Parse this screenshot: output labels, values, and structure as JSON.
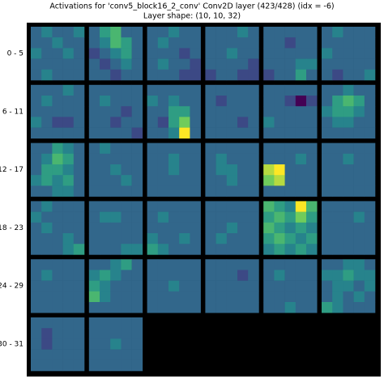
{
  "chart_data": {
    "type": "heatmap-grid",
    "title": "Activations for 'conv5_block16_2_conv' Conv2D layer (423/428) (idx = -6)",
    "subtitle": "Layer shape: (10, 10, 32)",
    "row_labels": [
      "0 - 5",
      "6 - 11",
      "12 - 17",
      "18 - 23",
      "24 - 29",
      "30 - 31"
    ],
    "tiles": [
      [
        [
          3,
          4,
          3,
          3,
          4
        ],
        [
          3,
          3,
          4,
          3,
          3
        ],
        [
          4,
          3,
          3,
          4,
          3
        ],
        [
          3,
          3,
          3,
          3,
          3
        ],
        [
          3,
          4,
          3,
          3,
          3
        ]
      ],
      [
        [
          3,
          5,
          6,
          3,
          3
        ],
        [
          3,
          4,
          6,
          5,
          3
        ],
        [
          2,
          3,
          4,
          5,
          3
        ],
        [
          3,
          2,
          3,
          4,
          3
        ],
        [
          3,
          3,
          2,
          3,
          3
        ]
      ],
      [
        [
          3,
          3,
          4,
          3,
          3
        ],
        [
          3,
          4,
          3,
          3,
          3
        ],
        [
          3,
          3,
          3,
          2,
          3
        ],
        [
          3,
          4,
          3,
          3,
          2
        ],
        [
          3,
          3,
          3,
          2,
          2
        ]
      ],
      [
        [
          3,
          3,
          3,
          4,
          3
        ],
        [
          3,
          3,
          3,
          3,
          3
        ],
        [
          3,
          3,
          4,
          3,
          3
        ],
        [
          3,
          3,
          3,
          3,
          2
        ],
        [
          2,
          3,
          3,
          2,
          2
        ]
      ],
      [
        [
          3,
          3,
          3,
          3,
          3
        ],
        [
          3,
          3,
          2,
          3,
          3
        ],
        [
          3,
          3,
          3,
          3,
          3
        ],
        [
          3,
          3,
          3,
          4,
          4
        ],
        [
          2,
          3,
          3,
          5,
          3
        ]
      ],
      [
        [
          3,
          4,
          3,
          3,
          3
        ],
        [
          3,
          3,
          3,
          3,
          3
        ],
        [
          4,
          3,
          3,
          3,
          3
        ],
        [
          3,
          3,
          3,
          3,
          3
        ],
        [
          3,
          2,
          3,
          3,
          4
        ]
      ],
      [
        [
          3,
          3,
          3,
          4,
          3
        ],
        [
          3,
          4,
          3,
          3,
          3
        ],
        [
          3,
          3,
          3,
          3,
          3
        ],
        [
          4,
          3,
          2,
          2,
          3
        ],
        [
          3,
          3,
          3,
          3,
          3
        ]
      ],
      [
        [
          3,
          3,
          3,
          3,
          3
        ],
        [
          3,
          4,
          3,
          3,
          3
        ],
        [
          3,
          3,
          3,
          2,
          3
        ],
        [
          3,
          3,
          2,
          3,
          3
        ],
        [
          3,
          3,
          3,
          3,
          2
        ]
      ],
      [
        [
          3,
          3,
          3,
          3,
          3
        ],
        [
          4,
          3,
          4,
          3,
          3
        ],
        [
          3,
          3,
          5,
          5,
          3
        ],
        [
          3,
          2,
          5,
          7,
          3
        ],
        [
          3,
          3,
          4,
          9,
          3
        ]
      ],
      [
        [
          3,
          3,
          3,
          3,
          3
        ],
        [
          3,
          2,
          3,
          3,
          3
        ],
        [
          3,
          3,
          3,
          3,
          3
        ],
        [
          3,
          3,
          3,
          2,
          3
        ],
        [
          3,
          3,
          3,
          3,
          3
        ]
      ],
      [
        [
          3,
          3,
          3,
          3,
          3
        ],
        [
          3,
          3,
          2,
          0,
          2
        ],
        [
          3,
          3,
          3,
          3,
          3
        ],
        [
          4,
          3,
          3,
          3,
          3
        ],
        [
          3,
          3,
          3,
          3,
          3
        ]
      ],
      [
        [
          3,
          3,
          4,
          3,
          3
        ],
        [
          3,
          5,
          6,
          5,
          3
        ],
        [
          4,
          5,
          5,
          4,
          3
        ],
        [
          3,
          4,
          4,
          3,
          3
        ],
        [
          3,
          3,
          3,
          3,
          3
        ]
      ],
      [
        [
          3,
          3,
          5,
          4,
          3
        ],
        [
          3,
          4,
          6,
          5,
          3
        ],
        [
          3,
          5,
          5,
          4,
          3
        ],
        [
          4,
          5,
          4,
          5,
          3
        ],
        [
          3,
          3,
          4,
          4,
          3
        ]
      ],
      [
        [
          3,
          4,
          3,
          3,
          3
        ],
        [
          3,
          3,
          3,
          3,
          3
        ],
        [
          3,
          3,
          4,
          3,
          3
        ],
        [
          3,
          3,
          3,
          4,
          3
        ],
        [
          3,
          3,
          3,
          3,
          3
        ]
      ],
      [
        [
          3,
          3,
          3,
          3,
          3
        ],
        [
          3,
          3,
          4,
          3,
          3
        ],
        [
          3,
          3,
          4,
          3,
          3
        ],
        [
          3,
          3,
          3,
          3,
          3
        ],
        [
          3,
          3,
          3,
          3,
          3
        ]
      ],
      [
        [
          3,
          3,
          3,
          3,
          3
        ],
        [
          3,
          4,
          3,
          3,
          3
        ],
        [
          3,
          4,
          4,
          3,
          3
        ],
        [
          3,
          3,
          4,
          3,
          3
        ],
        [
          3,
          3,
          3,
          3,
          3
        ]
      ],
      [
        [
          3,
          3,
          3,
          3,
          3
        ],
        [
          3,
          3,
          3,
          4,
          3
        ],
        [
          8,
          9,
          3,
          3,
          3
        ],
        [
          7,
          8,
          3,
          3,
          3
        ],
        [
          3,
          3,
          3,
          3,
          3
        ]
      ],
      [
        [
          3,
          3,
          3,
          3,
          3
        ],
        [
          3,
          3,
          4,
          3,
          3
        ],
        [
          3,
          3,
          3,
          3,
          3
        ],
        [
          3,
          3,
          3,
          3,
          3
        ],
        [
          3,
          3,
          3,
          3,
          3
        ]
      ],
      [
        [
          3,
          4,
          3,
          3,
          3
        ],
        [
          4,
          3,
          3,
          3,
          3
        ],
        [
          3,
          4,
          3,
          3,
          3
        ],
        [
          3,
          3,
          3,
          4,
          3
        ],
        [
          3,
          3,
          3,
          4,
          5
        ]
      ],
      [
        [
          3,
          3,
          3,
          3,
          3
        ],
        [
          3,
          4,
          4,
          3,
          3
        ],
        [
          3,
          3,
          3,
          3,
          3
        ],
        [
          3,
          3,
          3,
          3,
          3
        ],
        [
          3,
          3,
          3,
          4,
          4
        ]
      ],
      [
        [
          3,
          3,
          3,
          3,
          3
        ],
        [
          3,
          4,
          3,
          3,
          3
        ],
        [
          3,
          3,
          3,
          3,
          3
        ],
        [
          4,
          3,
          3,
          4,
          3
        ],
        [
          5,
          4,
          3,
          3,
          3
        ]
      ],
      [
        [
          3,
          3,
          3,
          3,
          3
        ],
        [
          3,
          3,
          3,
          3,
          3
        ],
        [
          3,
          3,
          4,
          3,
          3
        ],
        [
          3,
          4,
          3,
          3,
          3
        ],
        [
          3,
          3,
          3,
          3,
          3
        ]
      ],
      [
        [
          6,
          5,
          4,
          9,
          6
        ],
        [
          5,
          6,
          5,
          7,
          5
        ],
        [
          6,
          5,
          4,
          5,
          4
        ],
        [
          5,
          6,
          5,
          4,
          5
        ],
        [
          4,
          5,
          4,
          5,
          4
        ]
      ],
      [
        [
          3,
          3,
          3,
          3,
          3
        ],
        [
          3,
          3,
          3,
          4,
          3
        ],
        [
          3,
          3,
          3,
          3,
          3
        ],
        [
          3,
          3,
          3,
          3,
          3
        ],
        [
          3,
          3,
          3,
          3,
          3
        ]
      ],
      [
        [
          3,
          3,
          3,
          3,
          3
        ],
        [
          3,
          4,
          3,
          3,
          3
        ],
        [
          3,
          3,
          3,
          3,
          3
        ],
        [
          3,
          3,
          3,
          3,
          3
        ],
        [
          3,
          3,
          3,
          3,
          3
        ]
      ],
      [
        [
          3,
          3,
          4,
          5,
          3
        ],
        [
          4,
          5,
          4,
          3,
          3
        ],
        [
          5,
          4,
          3,
          3,
          3
        ],
        [
          6,
          4,
          3,
          3,
          3
        ],
        [
          3,
          3,
          3,
          3,
          3
        ]
      ],
      [
        [
          3,
          3,
          3,
          3,
          3
        ],
        [
          3,
          3,
          3,
          3,
          3
        ],
        [
          3,
          3,
          4,
          3,
          3
        ],
        [
          3,
          3,
          3,
          3,
          3
        ],
        [
          3,
          3,
          3,
          3,
          3
        ]
      ],
      [
        [
          3,
          3,
          3,
          3,
          3
        ],
        [
          3,
          3,
          3,
          2,
          3
        ],
        [
          3,
          3,
          3,
          3,
          3
        ],
        [
          3,
          3,
          3,
          3,
          3
        ],
        [
          3,
          3,
          3,
          3,
          3
        ]
      ],
      [
        [
          3,
          3,
          3,
          3,
          3
        ],
        [
          3,
          4,
          3,
          3,
          3
        ],
        [
          3,
          3,
          3,
          3,
          3
        ],
        [
          3,
          3,
          3,
          3,
          3
        ],
        [
          3,
          3,
          4,
          3,
          3
        ]
      ],
      [
        [
          3,
          3,
          4,
          4,
          3
        ],
        [
          4,
          4,
          5,
          4,
          4
        ],
        [
          3,
          4,
          4,
          3,
          4
        ],
        [
          3,
          4,
          3,
          4,
          3
        ],
        [
          5,
          4,
          3,
          3,
          3
        ]
      ],
      [
        [
          3,
          3,
          3,
          3,
          3
        ],
        [
          3,
          2,
          3,
          3,
          3
        ],
        [
          3,
          2,
          3,
          3,
          3
        ],
        [
          3,
          3,
          3,
          3,
          3
        ],
        [
          3,
          3,
          3,
          3,
          3
        ]
      ],
      [
        [
          3,
          3,
          3,
          3,
          3
        ],
        [
          3,
          3,
          3,
          3,
          3
        ],
        [
          3,
          3,
          4,
          3,
          3
        ],
        [
          3,
          3,
          3,
          3,
          3
        ],
        [
          3,
          3,
          3,
          3,
          3
        ]
      ]
    ]
  }
}
